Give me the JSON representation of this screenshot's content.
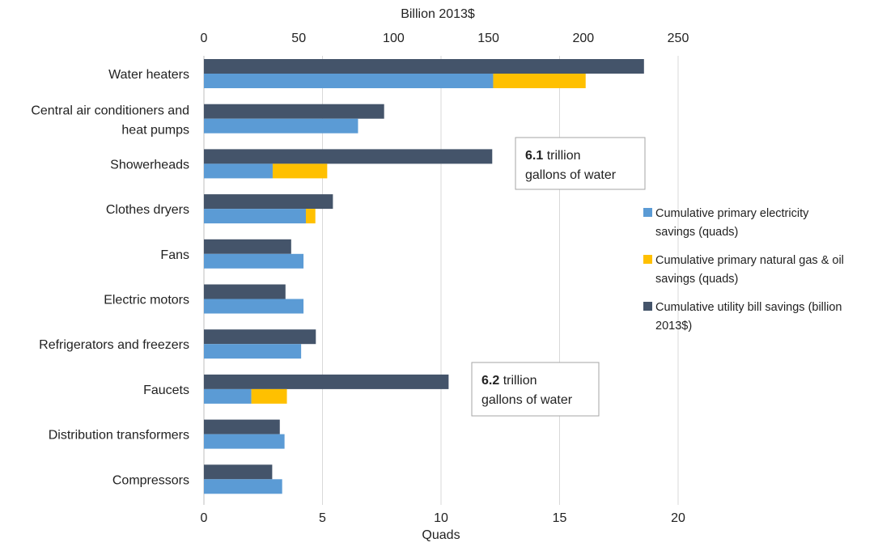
{
  "chart_data": {
    "type": "bar",
    "orientation": "horizontal",
    "categories": [
      "Water heaters",
      "Central air conditioners and heat pumps",
      "Showerheads",
      "Clothes dryers",
      "Fans",
      "Electric motors",
      "Refrigerators and freezers",
      "Faucets",
      "Distribution transformers",
      "Compressors"
    ],
    "category_label_lines": [
      [
        "Water heaters"
      ],
      [
        "Central air conditioners and",
        "heat pumps"
      ],
      [
        "Showerheads"
      ],
      [
        "Clothes dryers"
      ],
      [
        "Fans"
      ],
      [
        "Electric motors"
      ],
      [
        "Refrigerators and freezers"
      ],
      [
        "Faucets"
      ],
      [
        "Distribution transformers"
      ],
      [
        "Compressors"
      ]
    ],
    "series": [
      {
        "name": "Cumulative primary electricity savings (quads)",
        "axis": "bottom",
        "stack": "energy",
        "color": "#5B9BD5",
        "values": [
          12.2,
          6.5,
          2.9,
          4.3,
          4.2,
          4.2,
          4.1,
          2.0,
          3.4,
          3.3
        ]
      },
      {
        "name": "Cumulative primary natural gas & oil savings (quads)",
        "axis": "bottom",
        "stack": "energy",
        "color": "#FFC000",
        "values": [
          3.9,
          0,
          2.3,
          0.4,
          0,
          0,
          0,
          1.5,
          0,
          0
        ]
      },
      {
        "name": "Cumulative utility bill savings (billion 2013$)",
        "axis": "top",
        "stack": "bill",
        "color": "#44546A",
        "values": [
          232,
          95,
          152,
          68,
          46,
          43,
          59,
          129,
          40,
          36
        ]
      }
    ],
    "legend_lines": [
      [
        "Cumulative primary electricity",
        "savings (quads)"
      ],
      [
        "Cumulative primary natural gas & oil",
        "savings (quads)"
      ],
      [
        "Cumulative utility bill savings (billion",
        "2013$)"
      ]
    ],
    "xlabel": "Quads",
    "x_top_label": "Billion 2013$",
    "xlim": [
      0,
      20
    ],
    "x_top_lim": [
      0,
      250
    ],
    "x_ticks": [
      0,
      5,
      10,
      15,
      20
    ],
    "x_top_ticks": [
      0,
      50,
      100,
      150,
      200,
      250
    ],
    "grid": true,
    "legend_position": "right",
    "annotations": [
      {
        "category": "Showerheads",
        "bold": "6.1",
        "text_line1": " trillion",
        "text_line2": "gallons of water"
      },
      {
        "category": "Faucets",
        "bold": "6.2",
        "text_line1": " trillion",
        "text_line2": "gallons of water"
      }
    ]
  }
}
